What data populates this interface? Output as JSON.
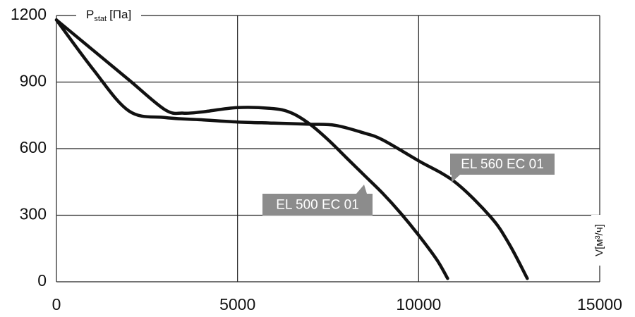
{
  "chart_data": {
    "type": "line",
    "y_label": {
      "base": "P",
      "sub": "stat",
      "rest": "[Па]"
    },
    "x_label": "V[м³/ч]",
    "xlim": [
      0,
      15000
    ],
    "xticks": [
      0,
      5000,
      10000,
      15000
    ],
    "ylim": [
      0,
      1200
    ],
    "yticks": [
      0,
      300,
      600,
      900,
      1200
    ],
    "grid": true,
    "series": [
      {
        "name": "EL 500 EC 01",
        "color": "#111111",
        "x": [
          0,
          1000,
          2000,
          3000,
          3500,
          4000,
          5000,
          6000,
          6500,
          7000,
          7500,
          8000,
          8500,
          9000,
          9500,
          10000,
          10500,
          10800
        ],
        "values": [
          1180,
          1045,
          910,
          775,
          760,
          765,
          785,
          780,
          760,
          710,
          640,
          560,
          480,
          400,
          310,
          210,
          100,
          15
        ]
      },
      {
        "name": "EL 560 EC 01",
        "color": "#111111",
        "x": [
          0,
          1000,
          2000,
          3000,
          4000,
          5000,
          6000,
          7000,
          7700,
          8500,
          9000,
          10000,
          11000,
          12000,
          12500,
          13000
        ],
        "values": [
          1180,
          960,
          770,
          740,
          730,
          720,
          715,
          710,
          705,
          670,
          640,
          545,
          450,
          290,
          170,
          15
        ]
      }
    ]
  }
}
